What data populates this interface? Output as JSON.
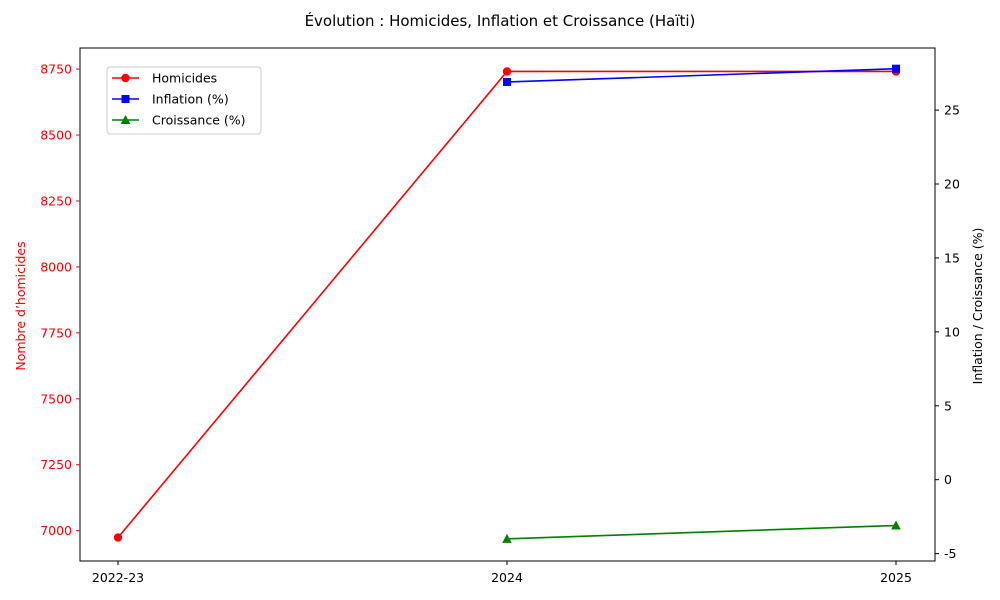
{
  "chart_data": {
    "type": "line",
    "title": "Évolution : Homicides, Inflation et Croissance (Haïti)",
    "categories": [
      "2022-23",
      "2024",
      "2025"
    ],
    "ylabel": "Nombre d’homicides",
    "y2label": "Inflation / Croissance (%)",
    "ylim": [
      6885,
      8830
    ],
    "y2lim": [
      -5.5,
      29.2
    ],
    "yticks": [
      7000,
      7250,
      7500,
      7750,
      8000,
      8250,
      8500,
      8750
    ],
    "y2ticks": [
      -5,
      0,
      5,
      10,
      15,
      20,
      25
    ],
    "grid": false,
    "legend_position": "top-left",
    "series": [
      {
        "name": "Homicides",
        "axis": "left",
        "color": "#ff0000",
        "marker": "circle",
        "values": [
          6974,
          8741,
          8741
        ]
      },
      {
        "name": "Inflation (%)",
        "axis": "right",
        "color": "#0000ff",
        "marker": "square",
        "values": [
          null,
          26.9,
          27.8
        ]
      },
      {
        "name": "Croissance (%)",
        "axis": "right",
        "color": "#008000",
        "marker": "triangle",
        "values": [
          null,
          -4.0,
          -3.1
        ]
      }
    ],
    "left_axis_color": "#ff0000",
    "right_axis_color": "#000000"
  }
}
